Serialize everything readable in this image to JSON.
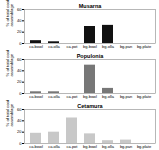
{
  "chart_data": [
    {
      "type": "bar",
      "title": "Musarna",
      "categories": [
        "ca.bowl",
        "ca.olla",
        "ca.pot",
        "bg.bowl",
        "bg.olla",
        "bg.pan",
        "bg.plate"
      ],
      "values": [
        5,
        3,
        0,
        30,
        32,
        0,
        0
      ],
      "color": "#111111",
      "y_label": "% of total cooking assemblage",
      "ylim": [
        0,
        60
      ],
      "yticks": [
        0,
        20,
        40,
        60
      ]
    },
    {
      "type": "bar",
      "title": "Populonia",
      "categories": [
        "ca.bowl",
        "ca.olla",
        "ca.pot",
        "bg.bowl",
        "bg.olla",
        "bg.pan",
        "bg.plate"
      ],
      "values": [
        3,
        3,
        0,
        50,
        9,
        0,
        0
      ],
      "color": "#777777",
      "y_label": "% of total cooking assemblage",
      "ylim": [
        0,
        60
      ],
      "yticks": [
        0,
        20,
        40,
        60
      ]
    },
    {
      "type": "bar",
      "title": "Cetamura",
      "categories": [
        "ca.bowl",
        "ca.olla",
        "ca.pot",
        "bg.bowl",
        "bg.olla",
        "bg.pan",
        "bg.plate"
      ],
      "values": [
        18,
        20,
        45,
        17,
        5,
        6,
        0
      ],
      "color": "#c8c8c8",
      "y_label": "% of total cooking assemblage",
      "ylim": [
        0,
        60
      ],
      "yticks": [
        0,
        20,
        40,
        60
      ]
    }
  ]
}
